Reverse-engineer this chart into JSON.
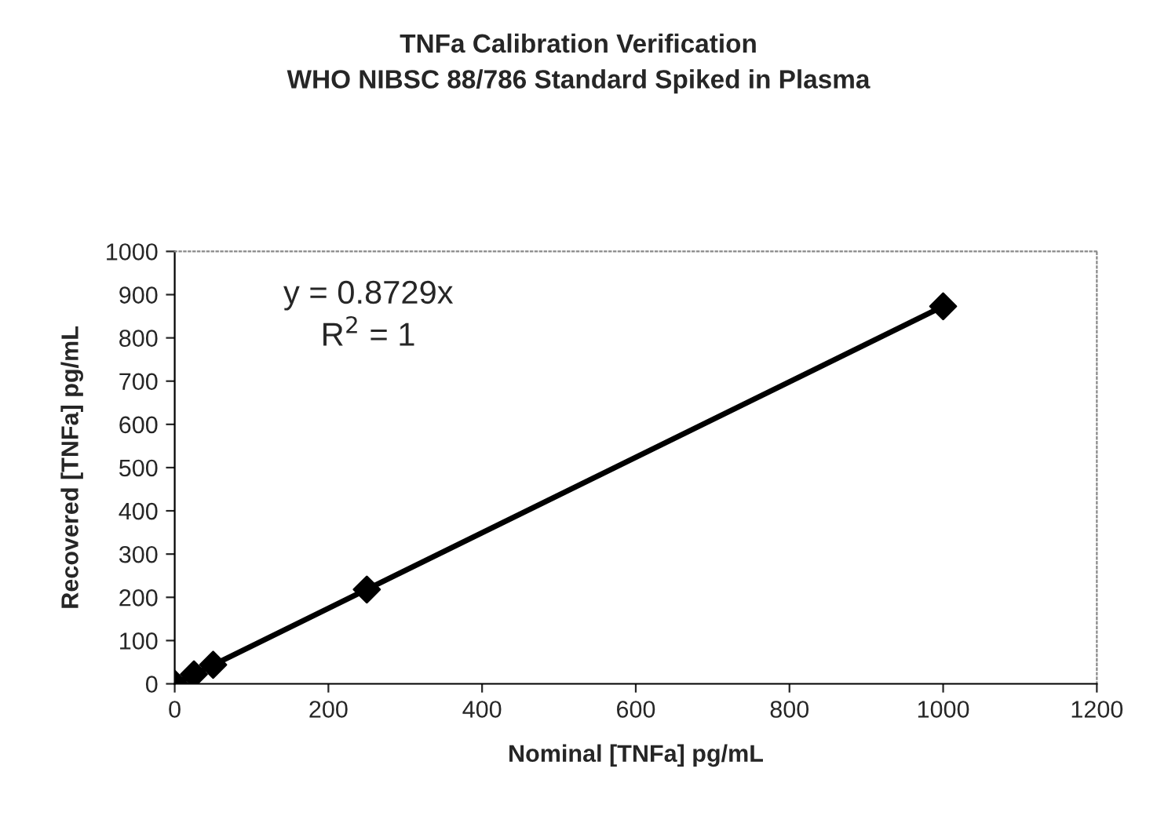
{
  "chart_data": {
    "type": "scatter",
    "title": "TNFa Calibration Verification\nWHO NIBSC 88/786 Standard Spiked in Plasma",
    "xlabel": "Nominal [TNFa] pg/mL",
    "ylabel": "Recovered [TNFa] pg/mL",
    "x": [
      0,
      25,
      50,
      250,
      1000
    ],
    "series": [
      {
        "color": "#000000",
        "values": [
          0,
          22,
          44,
          218,
          873
        ],
        "marker": "diamond"
      },
      {
        "type": "line",
        "color": "#000000",
        "x": [
          0,
          1000
        ],
        "values": [
          0,
          873
        ],
        "marker": "none"
      }
    ],
    "annotations": [
      "y = 0.8729x\nR$^{2}$ = 1"
    ],
    "xlim": [
      0,
      1200
    ],
    "xticks": [
      0,
      200,
      400,
      600,
      800,
      1000,
      1200
    ],
    "ylim": [
      0,
      1000
    ],
    "yticks": [
      0,
      100,
      200,
      300,
      400,
      500,
      600,
      700,
      800,
      900,
      1000
    ],
    "grid": false,
    "legend": false
  }
}
